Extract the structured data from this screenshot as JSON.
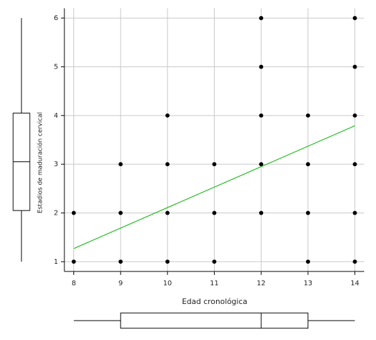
{
  "chart_data": {
    "type": "scatter",
    "x_label": "Edad cronológica",
    "y_label": "Estadios de maduración cervical",
    "x": [
      8,
      8,
      9,
      9,
      9,
      10,
      10,
      10,
      10,
      11,
      11,
      11,
      12,
      12,
      12,
      12,
      12,
      13,
      13,
      13,
      13,
      14,
      14,
      14,
      14,
      14,
      14
    ],
    "values": [
      2,
      1,
      3,
      2,
      1,
      4,
      3,
      2,
      1,
      3,
      2,
      1,
      6,
      5,
      4,
      3,
      2,
      4,
      3,
      2,
      1,
      6,
      5,
      4,
      3,
      2,
      1
    ],
    "color": "#000000",
    "fit": {
      "x": [
        8,
        14
      ],
      "values": [
        1.27,
        3.79
      ],
      "color": "#22bb22"
    },
    "boxplots": {
      "x": {
        "min": 8,
        "q1": 9,
        "median": 12,
        "q3": 13,
        "max": 14
      },
      "y": {
        "min": 1,
        "q1": 2.05,
        "median": 3.05,
        "q3": 4.05,
        "max": 6
      }
    },
    "xlim": [
      7.8,
      14.2
    ],
    "ylim": [
      0.8,
      6.2
    ],
    "xticks": [
      8,
      9,
      10,
      11,
      12,
      13,
      14
    ],
    "yticks": [
      1,
      2,
      3,
      4,
      5,
      6
    ],
    "grid": true
  }
}
